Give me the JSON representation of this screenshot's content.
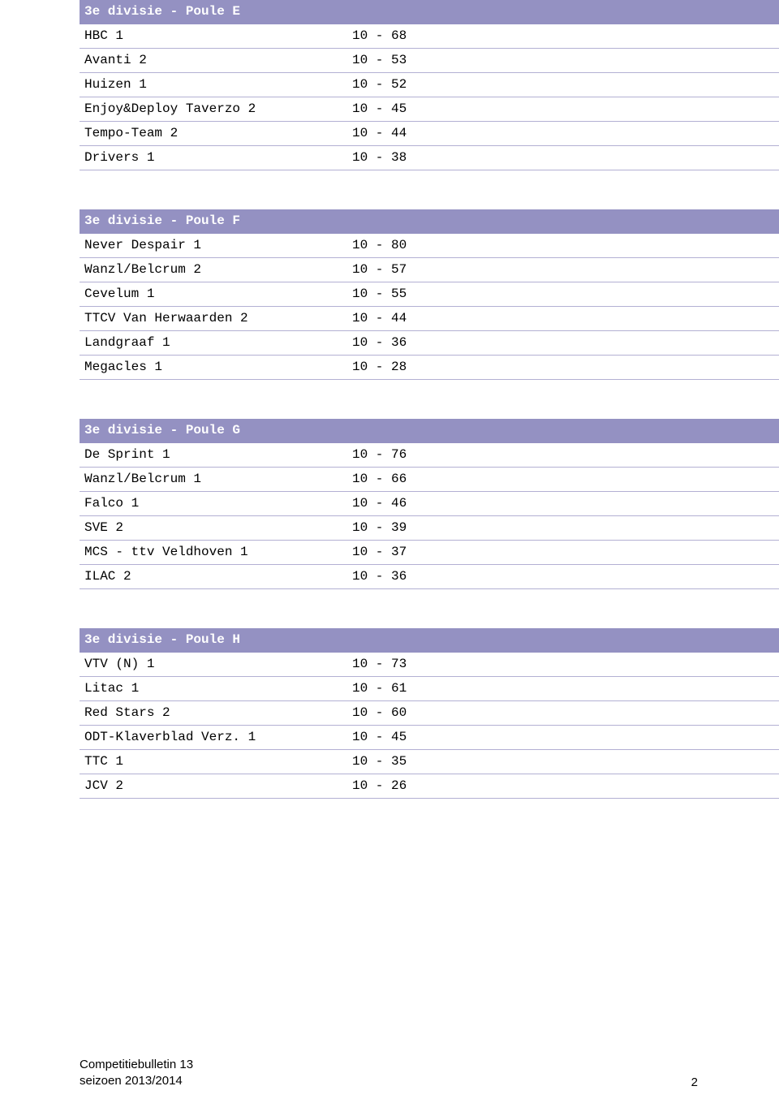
{
  "colors": {
    "header_bg": "#9491c2",
    "header_text": "#ffffff",
    "row_text": "#000000",
    "row_border": "#b3b0d3"
  },
  "tables": [
    {
      "title": "3e divisie - Poule E",
      "rows": [
        {
          "team": "HBC 1",
          "score": "10 - 68"
        },
        {
          "team": "Avanti 2",
          "score": "10 - 53"
        },
        {
          "team": "Huizen 1",
          "score": "10 - 52"
        },
        {
          "team": "Enjoy&Deploy Taverzo 2",
          "score": "10 - 45"
        },
        {
          "team": "Tempo-Team 2",
          "score": "10 - 44"
        },
        {
          "team": "Drivers 1",
          "score": "10 - 38"
        }
      ]
    },
    {
      "title": "3e divisie - Poule F",
      "rows": [
        {
          "team": "Never Despair 1",
          "score": "10 - 80"
        },
        {
          "team": "Wanzl/Belcrum 2",
          "score": "10 - 57"
        },
        {
          "team": "Cevelum 1",
          "score": "10 - 55"
        },
        {
          "team": "TTCV Van Herwaarden 2",
          "score": "10 - 44"
        },
        {
          "team": "Landgraaf 1",
          "score": "10 - 36"
        },
        {
          "team": "Megacles 1",
          "score": "10 - 28"
        }
      ]
    },
    {
      "title": "3e divisie - Poule G",
      "rows": [
        {
          "team": "De Sprint 1",
          "score": "10 - 76"
        },
        {
          "team": "Wanzl/Belcrum 1",
          "score": "10 - 66"
        },
        {
          "team": "Falco 1",
          "score": "10 - 46"
        },
        {
          "team": "SVE 2",
          "score": "10 - 39"
        },
        {
          "team": "MCS - ttv Veldhoven 1",
          "score": "10 - 37"
        },
        {
          "team": "ILAC 2",
          "score": "10 - 36"
        }
      ]
    },
    {
      "title": "3e divisie - Poule H",
      "rows": [
        {
          "team": "VTV (N) 1",
          "score": "10 - 73"
        },
        {
          "team": "Litac 1",
          "score": "10 - 61"
        },
        {
          "team": "Red Stars 2",
          "score": "10 - 60"
        },
        {
          "team": "ODT-Klaverblad Verz. 1",
          "score": "10 - 45"
        },
        {
          "team": "TTC 1",
          "score": "10 - 35"
        },
        {
          "team": "JCV 2",
          "score": "10 - 26"
        }
      ]
    }
  ],
  "footer": {
    "line1": "Competitiebulletin 13",
    "line2": "seizoen 2013/2014",
    "page_number": "2"
  }
}
